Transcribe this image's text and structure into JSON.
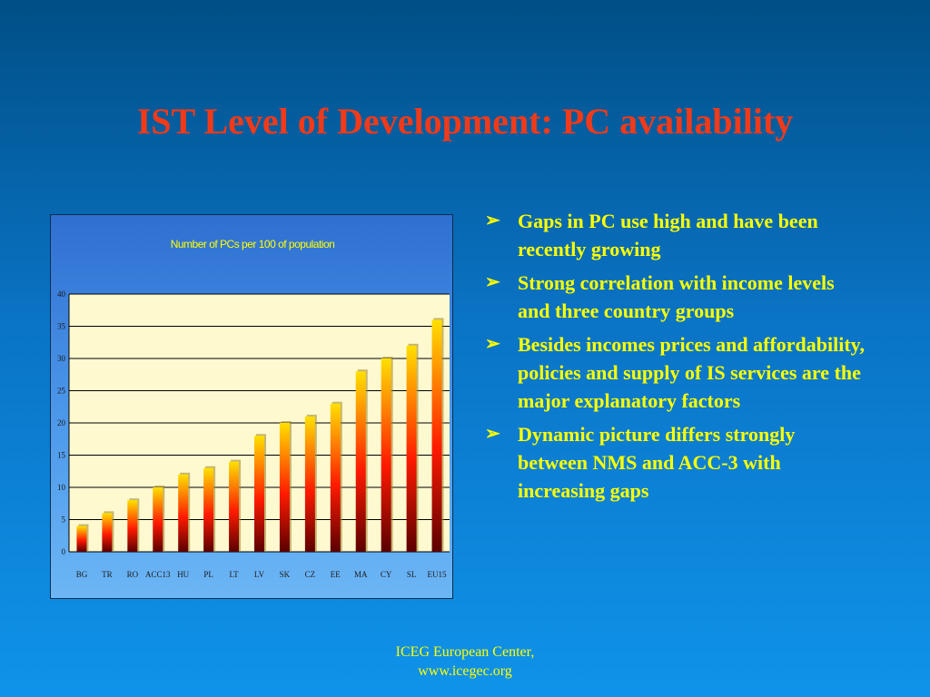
{
  "slide": {
    "title": "IST Level of Development: PC availability",
    "bullets": [
      "Gaps in PC use high and have been recently growing",
      "Strong correlation with income levels and three country groups",
      "Besides incomes prices and affordability, policies and supply of IS services are the major explanatory factors",
      "Dynamic picture differs strongly between NMS and ACC-3 with increasing gaps"
    ],
    "bullet_icon": "arrowhead-bullet-icon",
    "footer": {
      "line1": "ICEG European Center,",
      "line2": "www.icegec.org"
    }
  },
  "colors": {
    "title": "#f03a1a",
    "text": "#ffff00",
    "plot_bg": "#fff9d0",
    "bar_top": "#ffe000",
    "bar_mid": "#ff1a00",
    "bar_bottom": "#5a0000"
  },
  "chart_data": {
    "type": "bar",
    "title": "Number of PCs per 100 of population",
    "xlabel": "",
    "ylabel": "",
    "categories": [
      "BG",
      "TR",
      "RO",
      "ACC13",
      "HU",
      "PL",
      "LT",
      "LV",
      "SK",
      "CZ",
      "EE",
      "MA",
      "CY",
      "SL",
      "EU15"
    ],
    "values": [
      4,
      6,
      8,
      10,
      12,
      13,
      14,
      18,
      20,
      21,
      23,
      28,
      30,
      32,
      36
    ],
    "ylim": [
      0,
      40
    ],
    "yticks": [
      0,
      5,
      10,
      15,
      20,
      25,
      30,
      35,
      40
    ],
    "grid": true,
    "legend": "none"
  }
}
